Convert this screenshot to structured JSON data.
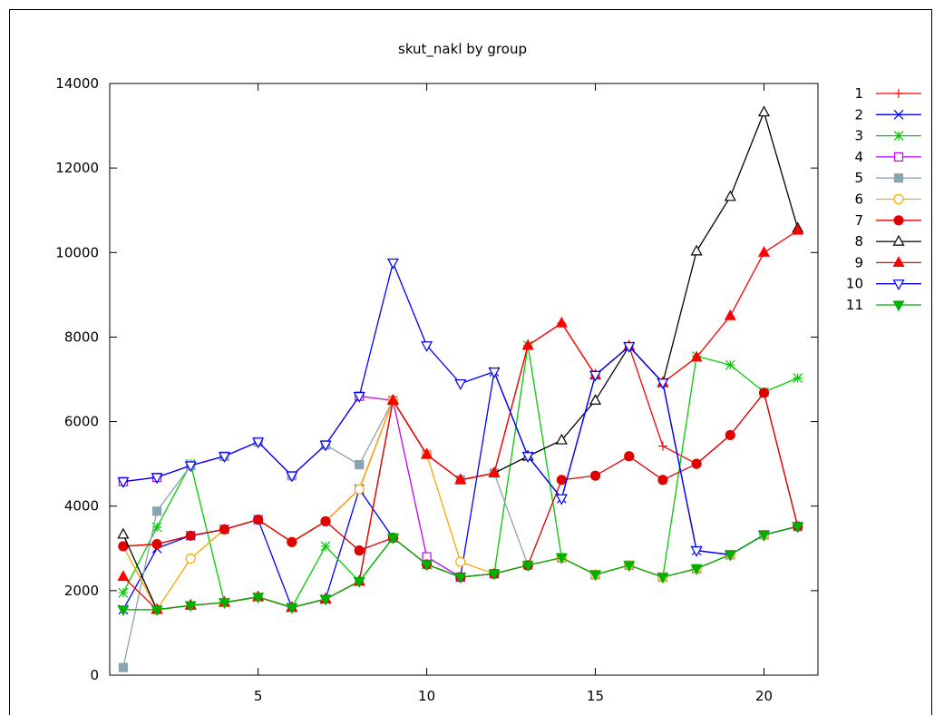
{
  "chart_data": {
    "type": "line",
    "title": "skut_nakl by group",
    "xlabel": "",
    "ylabel": "",
    "xlim": [
      0.6,
      21.6
    ],
    "ylim": [
      0,
      14000
    ],
    "xticks": [
      5,
      10,
      15,
      20
    ],
    "yticks": [
      0,
      2000,
      4000,
      6000,
      8000,
      10000,
      12000,
      14000
    ],
    "legend_position": "right",
    "x": [
      1,
      2,
      3,
      4,
      5,
      6,
      7,
      8,
      9,
      10,
      11,
      12,
      13,
      14,
      15,
      16,
      17,
      18,
      19,
      20,
      21
    ],
    "series": [
      {
        "name": "1",
        "color": "#ff0000",
        "marker": "plus",
        "values": [
          3050,
          3100,
          3300,
          3450,
          3680,
          3150,
          3640,
          4400,
          6500,
          5220,
          4620,
          4780,
          7800,
          8330,
          7100,
          7780,
          5420,
          5000,
          5680,
          6680,
          3520
        ]
      },
      {
        "name": "2",
        "color": "#0000ff",
        "marker": "x",
        "values": [
          1550,
          3000,
          3300,
          3450,
          3680,
          1600,
          1800,
          4400,
          3250,
          2620,
          2320,
          7180,
          5180,
          4180,
          7100,
          7780,
          6920,
          2950,
          2850,
          3320,
          3520
        ]
      },
      {
        "name": "3",
        "color": "#00cc00",
        "marker": "star",
        "values": [
          1950,
          3500,
          5000,
          1720,
          1850,
          1600,
          3050,
          2220,
          3250,
          2620,
          2320,
          2400,
          7800,
          2780,
          2380,
          2600,
          2320,
          7550,
          7340,
          6700,
          7030
        ]
      },
      {
        "name": "4",
        "color": "#c000ff",
        "marker": "square-open",
        "values": [
          4580,
          4680,
          4960,
          5180,
          5520,
          4720,
          5450,
          6600,
          6500,
          2800,
          2320,
          2400,
          2600,
          2780,
          2380,
          2600,
          2320,
          2520,
          2850,
          3320,
          3520
        ]
      },
      {
        "name": "5",
        "color": "#8aa3b0",
        "marker": "square-filled",
        "values": [
          180,
          3880,
          4960,
          5180,
          5520,
          4720,
          5450,
          4980,
          6500,
          5220,
          4620,
          4780,
          2600,
          2780,
          2380,
          2600,
          2320,
          2520,
          2850,
          3320,
          3520
        ]
      },
      {
        "name": "6",
        "color": "#ffa500",
        "marker": "circle-open",
        "values": [
          3050,
          1550,
          2760,
          3450,
          3680,
          3150,
          3640,
          4400,
          6500,
          5220,
          2680,
          2400,
          2600,
          2780,
          2380,
          2600,
          2320,
          2520,
          2850,
          3320,
          3520
        ]
      },
      {
        "name": "7",
        "color": "#e00000",
        "marker": "circle-filled",
        "values": [
          3050,
          3100,
          3300,
          3450,
          3680,
          3150,
          3640,
          2950,
          3250,
          2620,
          2320,
          2400,
          2600,
          4620,
          4720,
          5180,
          4620,
          5000,
          5680,
          6680,
          3520
        ]
      },
      {
        "name": "8",
        "color": "#000000",
        "marker": "triangle-open",
        "values": [
          3330,
          1550,
          1650,
          1720,
          1850,
          1600,
          1800,
          2220,
          6500,
          5220,
          4620,
          4780,
          5180,
          5560,
          6500,
          7780,
          6920,
          10030,
          11320,
          13320,
          10570
        ]
      },
      {
        "name": "9",
        "color": "#ff0000",
        "marker": "triangle-filled",
        "values": [
          2330,
          1550,
          1650,
          1720,
          1850,
          1600,
          1800,
          2220,
          6500,
          5220,
          4620,
          4780,
          7800,
          8330,
          7100,
          7780,
          6920,
          7520,
          8500,
          10000,
          10520
        ]
      },
      {
        "name": "10",
        "color": "#0000ff",
        "marker": "triangle-down-open",
        "values": [
          4580,
          4680,
          4960,
          5180,
          5520,
          4720,
          5450,
          6600,
          9760,
          7800,
          6900,
          7180,
          5180,
          4180,
          7100,
          7780,
          6920,
          2950,
          2850,
          3320,
          3520
        ]
      },
      {
        "name": "11",
        "color": "#00b000",
        "marker": "triangle-down-filled",
        "values": [
          1550,
          1550,
          1650,
          1720,
          1850,
          1600,
          1800,
          2220,
          3250,
          2620,
          2320,
          2400,
          2600,
          2780,
          2380,
          2600,
          2320,
          2520,
          2850,
          3320,
          3520
        ]
      }
    ]
  }
}
